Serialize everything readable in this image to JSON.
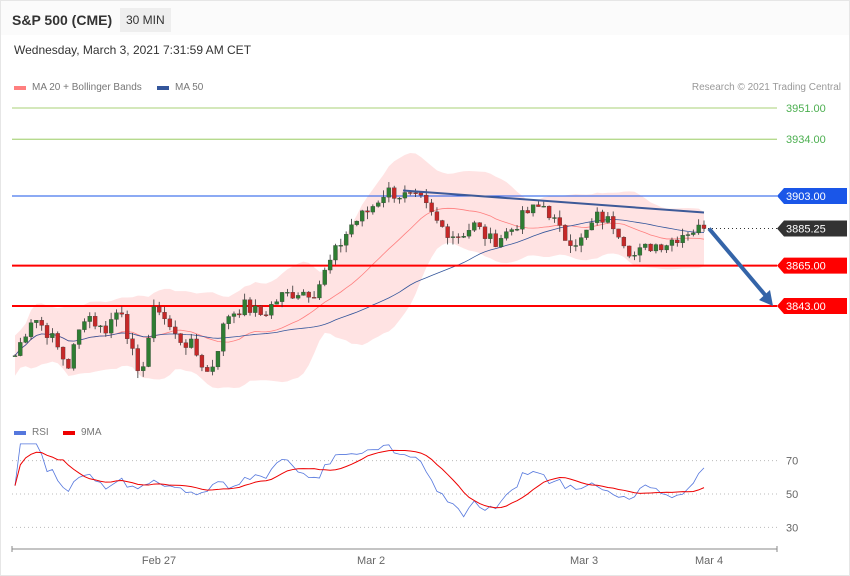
{
  "header": {
    "title": "S&P 500 (CME)",
    "timeframe": "30 MIN",
    "datetime": "Wednesday, March 3, 2021 7:31:59 AM CET"
  },
  "legend": {
    "bb": "MA 20 + Bollinger Bands",
    "ma50": "MA 50",
    "rsi": "RSI",
    "ma9": "9MA",
    "credit": "Research © 2021 Trading Central"
  },
  "colors": {
    "bb": "#ff7f7f",
    "ma50": "#34569b",
    "rsi": "#5577dd",
    "ma9": "#ee0000",
    "up": "#2e7d32",
    "down": "#c62828",
    "resistance_blue": "#1a56e8",
    "support_red": "#ff0000",
    "green": "#8bc34a"
  },
  "chart_data": {
    "type": "candlestick",
    "levels": [
      {
        "label": "3951.00",
        "value": 3951,
        "kind": "green"
      },
      {
        "label": "3934.00",
        "value": 3934,
        "kind": "green"
      },
      {
        "label": "3903.00",
        "value": 3903,
        "kind": "blue"
      },
      {
        "label": "3885.25",
        "value": 3885.25,
        "kind": "last"
      },
      {
        "label": "3865.00",
        "value": 3865,
        "kind": "red"
      },
      {
        "label": "3843.00",
        "value": 3843,
        "kind": "red"
      }
    ],
    "price_path": [
      3816,
      3838,
      3827,
      3810,
      3840,
      3829,
      3843,
      3802,
      3845,
      3827,
      3821,
      3805,
      3838,
      3843,
      3838,
      3848,
      3851,
      3851,
      3870,
      3887,
      3895,
      3906,
      3903,
      3900,
      3887,
      3881,
      3887,
      3878,
      3884,
      3894,
      3898,
      3881,
      3878,
      3892,
      3887,
      3870,
      3876,
      3878,
      3884,
      3885.25
    ],
    "x_ticks": [
      "Feb 27",
      "Mar 2",
      "Mar 3",
      "Mar 4"
    ],
    "rsi_ticks": [
      "70",
      "50",
      "30"
    ],
    "trendline": {
      "from": 3906,
      "to": 3894
    },
    "forecast_target": 3843
  }
}
